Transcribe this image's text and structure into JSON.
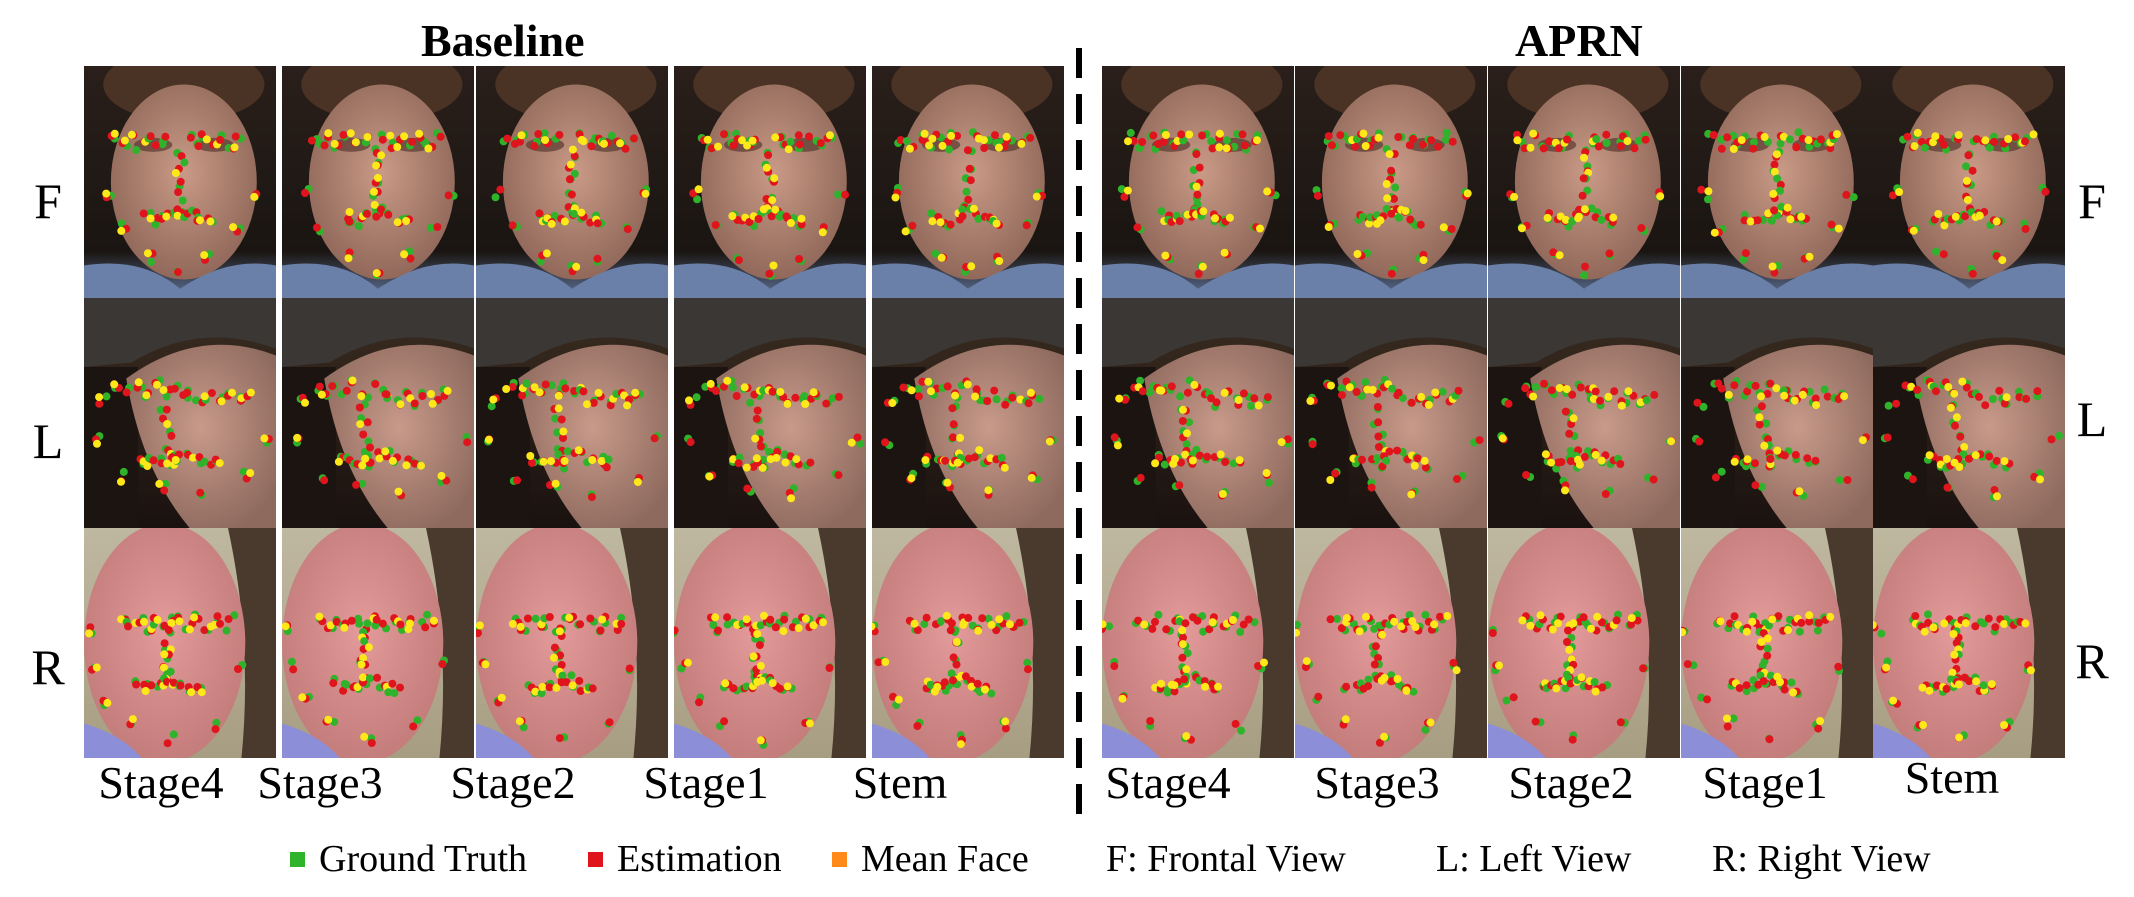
{
  "titles": {
    "left": "Baseline",
    "right": "APRN"
  },
  "row_labels": [
    "F",
    "L",
    "R"
  ],
  "columns": {
    "left": [
      "Stage4",
      "Stage3",
      "Stage2",
      "Stage1",
      "Stem"
    ],
    "right": [
      "Stage4",
      "Stage3",
      "Stage2",
      "Stage1",
      "Stem"
    ]
  },
  "legend": {
    "ground_truth": {
      "label": "Ground Truth",
      "color": "#2fb32a"
    },
    "estimation": {
      "label": "Estimation",
      "color": "#e0141c"
    },
    "mean_face": {
      "label": "Mean Face",
      "color": "#ff8a1a"
    },
    "frontal": "F: Frontal View",
    "left": "L: Left View",
    "right": "R: Right View"
  },
  "colors": {
    "landmark_yellow": "#ffe81a"
  }
}
